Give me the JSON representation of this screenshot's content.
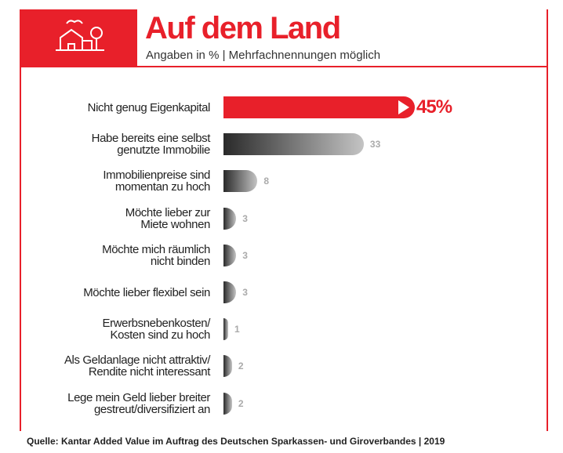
{
  "chart_data": {
    "type": "bar",
    "orientation": "horizontal",
    "title": "Auf dem Land",
    "subtitle": "Angaben in % | Mehrfachnennungen möglich",
    "categories": [
      "Nicht genug Eigenkapital",
      "Habe bereits eine selbst\ngenutzte Immobilie",
      "Immobilienpreise sind\nmomentan zu hoch",
      "Möchte lieber zur\nMiete wohnen",
      "Möchte mich räumlich\nnicht binden",
      "Möchte lieber flexibel sein",
      "Erwerbsnebenkosten/\nKosten sind zu hoch",
      "Als Geldanlage nicht attraktiv/\nRendite nicht interessant",
      "Lege mein Geld lieber breiter\ngestreut/diversifiziert an"
    ],
    "values": [
      45,
      33,
      8,
      3,
      3,
      3,
      1,
      2,
      2
    ],
    "value_labels": [
      "45%",
      "33",
      "8",
      "3",
      "3",
      "3",
      "1",
      "2",
      "2"
    ],
    "highlight_color": "#e8202a",
    "source": "Quelle: Kantar Added Value im Auftrag des Deutschen Sparkassen- und Giroverbandes | 2019"
  }
}
